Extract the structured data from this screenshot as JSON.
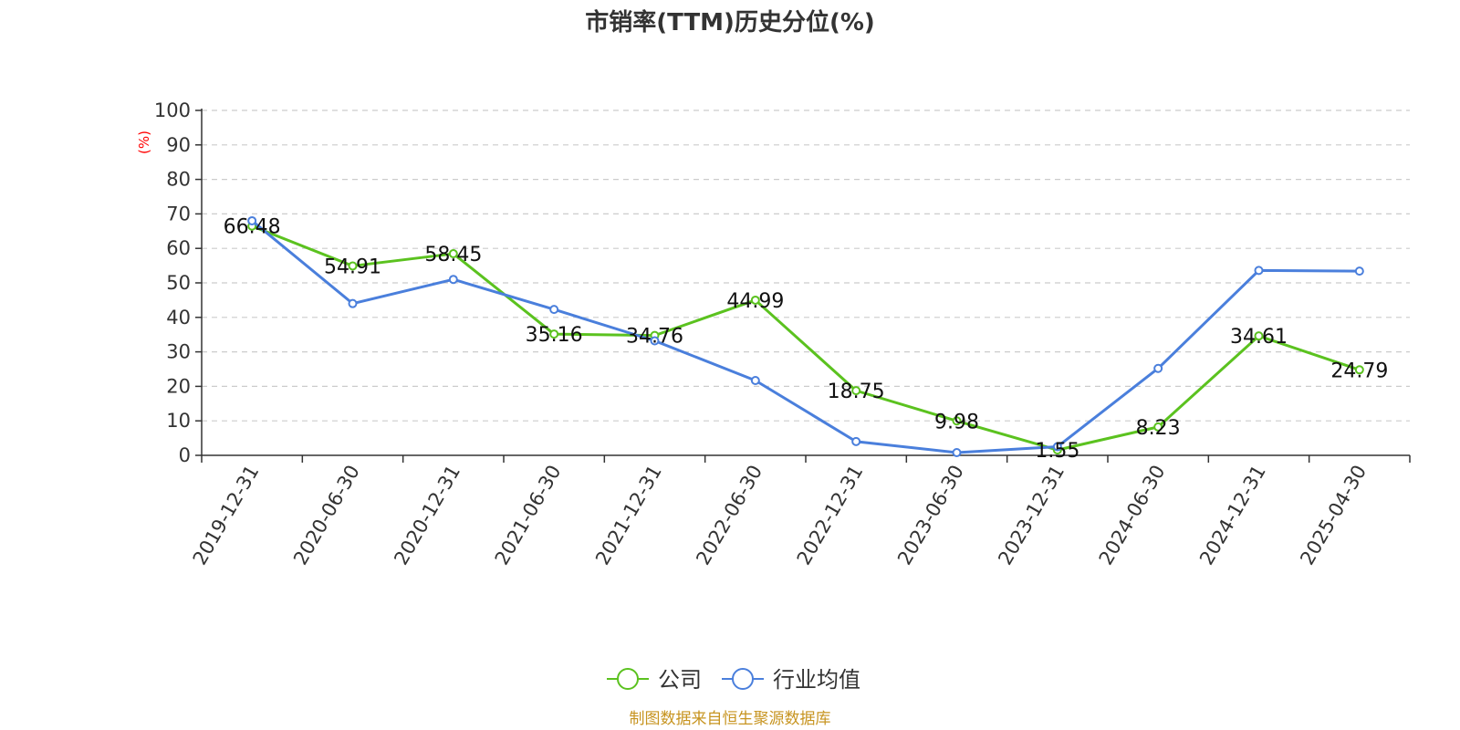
{
  "chart_data": {
    "type": "line",
    "title": "市销率(TTM)历史分位(%)",
    "ylabel": "(%)",
    "ylim": [
      0,
      100
    ],
    "yticks": [
      0,
      10,
      20,
      30,
      40,
      50,
      60,
      70,
      80,
      90,
      100
    ],
    "grid": true,
    "legend_position": "bottom-center",
    "categories": [
      "2019-12-31",
      "2020-06-30",
      "2020-12-31",
      "2021-06-30",
      "2021-12-31",
      "2022-06-30",
      "2022-12-31",
      "2023-06-30",
      "2023-12-31",
      "2024-06-30",
      "2024-12-31",
      "2025-04-30"
    ],
    "series": [
      {
        "name": "公司",
        "color": "#5bc21f",
        "values": [
          66.48,
          54.91,
          58.45,
          35.16,
          34.76,
          44.99,
          18.75,
          9.98,
          1.55,
          8.23,
          34.61,
          24.79
        ],
        "show_labels": true
      },
      {
        "name": "行业均值",
        "color": "#4a7fdc",
        "values": [
          68.0,
          44.0,
          51.0,
          42.3,
          33.2,
          21.7,
          4.0,
          0.8,
          2.5,
          25.2,
          53.6,
          53.4
        ],
        "show_labels": false
      }
    ]
  },
  "footer": {
    "source": "制图数据来自恒生聚源数据库"
  }
}
